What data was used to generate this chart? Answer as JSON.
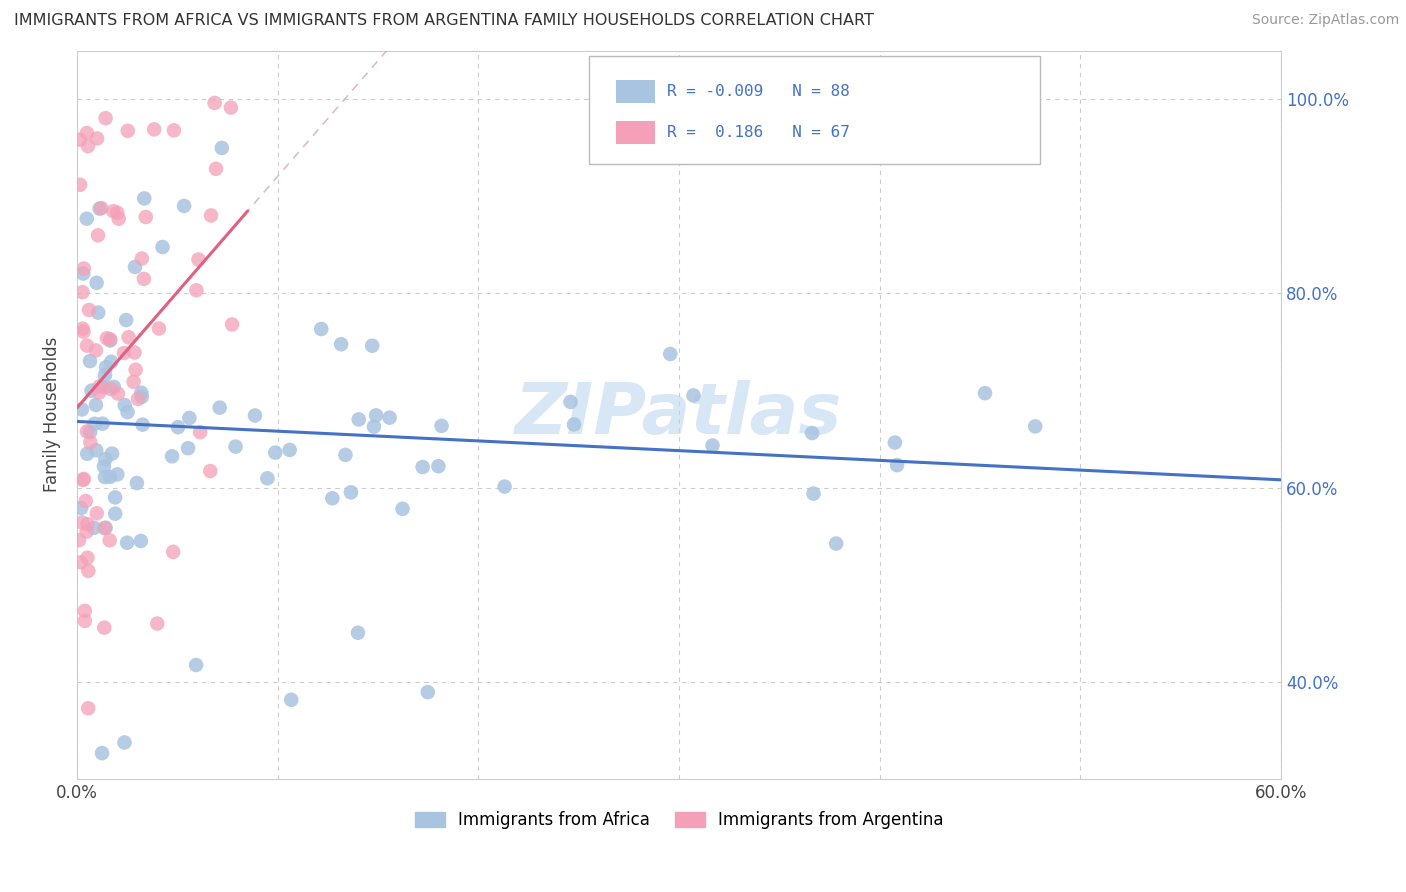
{
  "title": "IMMIGRANTS FROM AFRICA VS IMMIGRANTS FROM ARGENTINA FAMILY HOUSEHOLDS CORRELATION CHART",
  "source": "Source: ZipAtlas.com",
  "ylabel": "Family Households",
  "xlim": [
    0.0,
    0.6
  ],
  "ylim": [
    0.3,
    1.05
  ],
  "x_ticks": [
    0.0,
    0.1,
    0.2,
    0.3,
    0.4,
    0.5,
    0.6
  ],
  "x_tick_labels": [
    "0.0%",
    "",
    "",
    "",
    "",
    "",
    "60.0%"
  ],
  "y_ticks_right": [
    0.4,
    0.6,
    0.8,
    1.0
  ],
  "y_tick_labels_right": [
    "40.0%",
    "60.0%",
    "80.0%",
    "100.0%"
  ],
  "legend_africa_label": "Immigrants from Africa",
  "legend_argentina_label": "Immigrants from Argentina",
  "R_africa": "-0.009",
  "N_africa": "88",
  "R_argentina": "0.186",
  "N_argentina": "67",
  "africa_color": "#a8c4e0",
  "argentina_color": "#f4a0b8",
  "africa_line_color": "#4472c4",
  "argentina_line_color": "#e06080",
  "watermark": "ZIPatlas"
}
